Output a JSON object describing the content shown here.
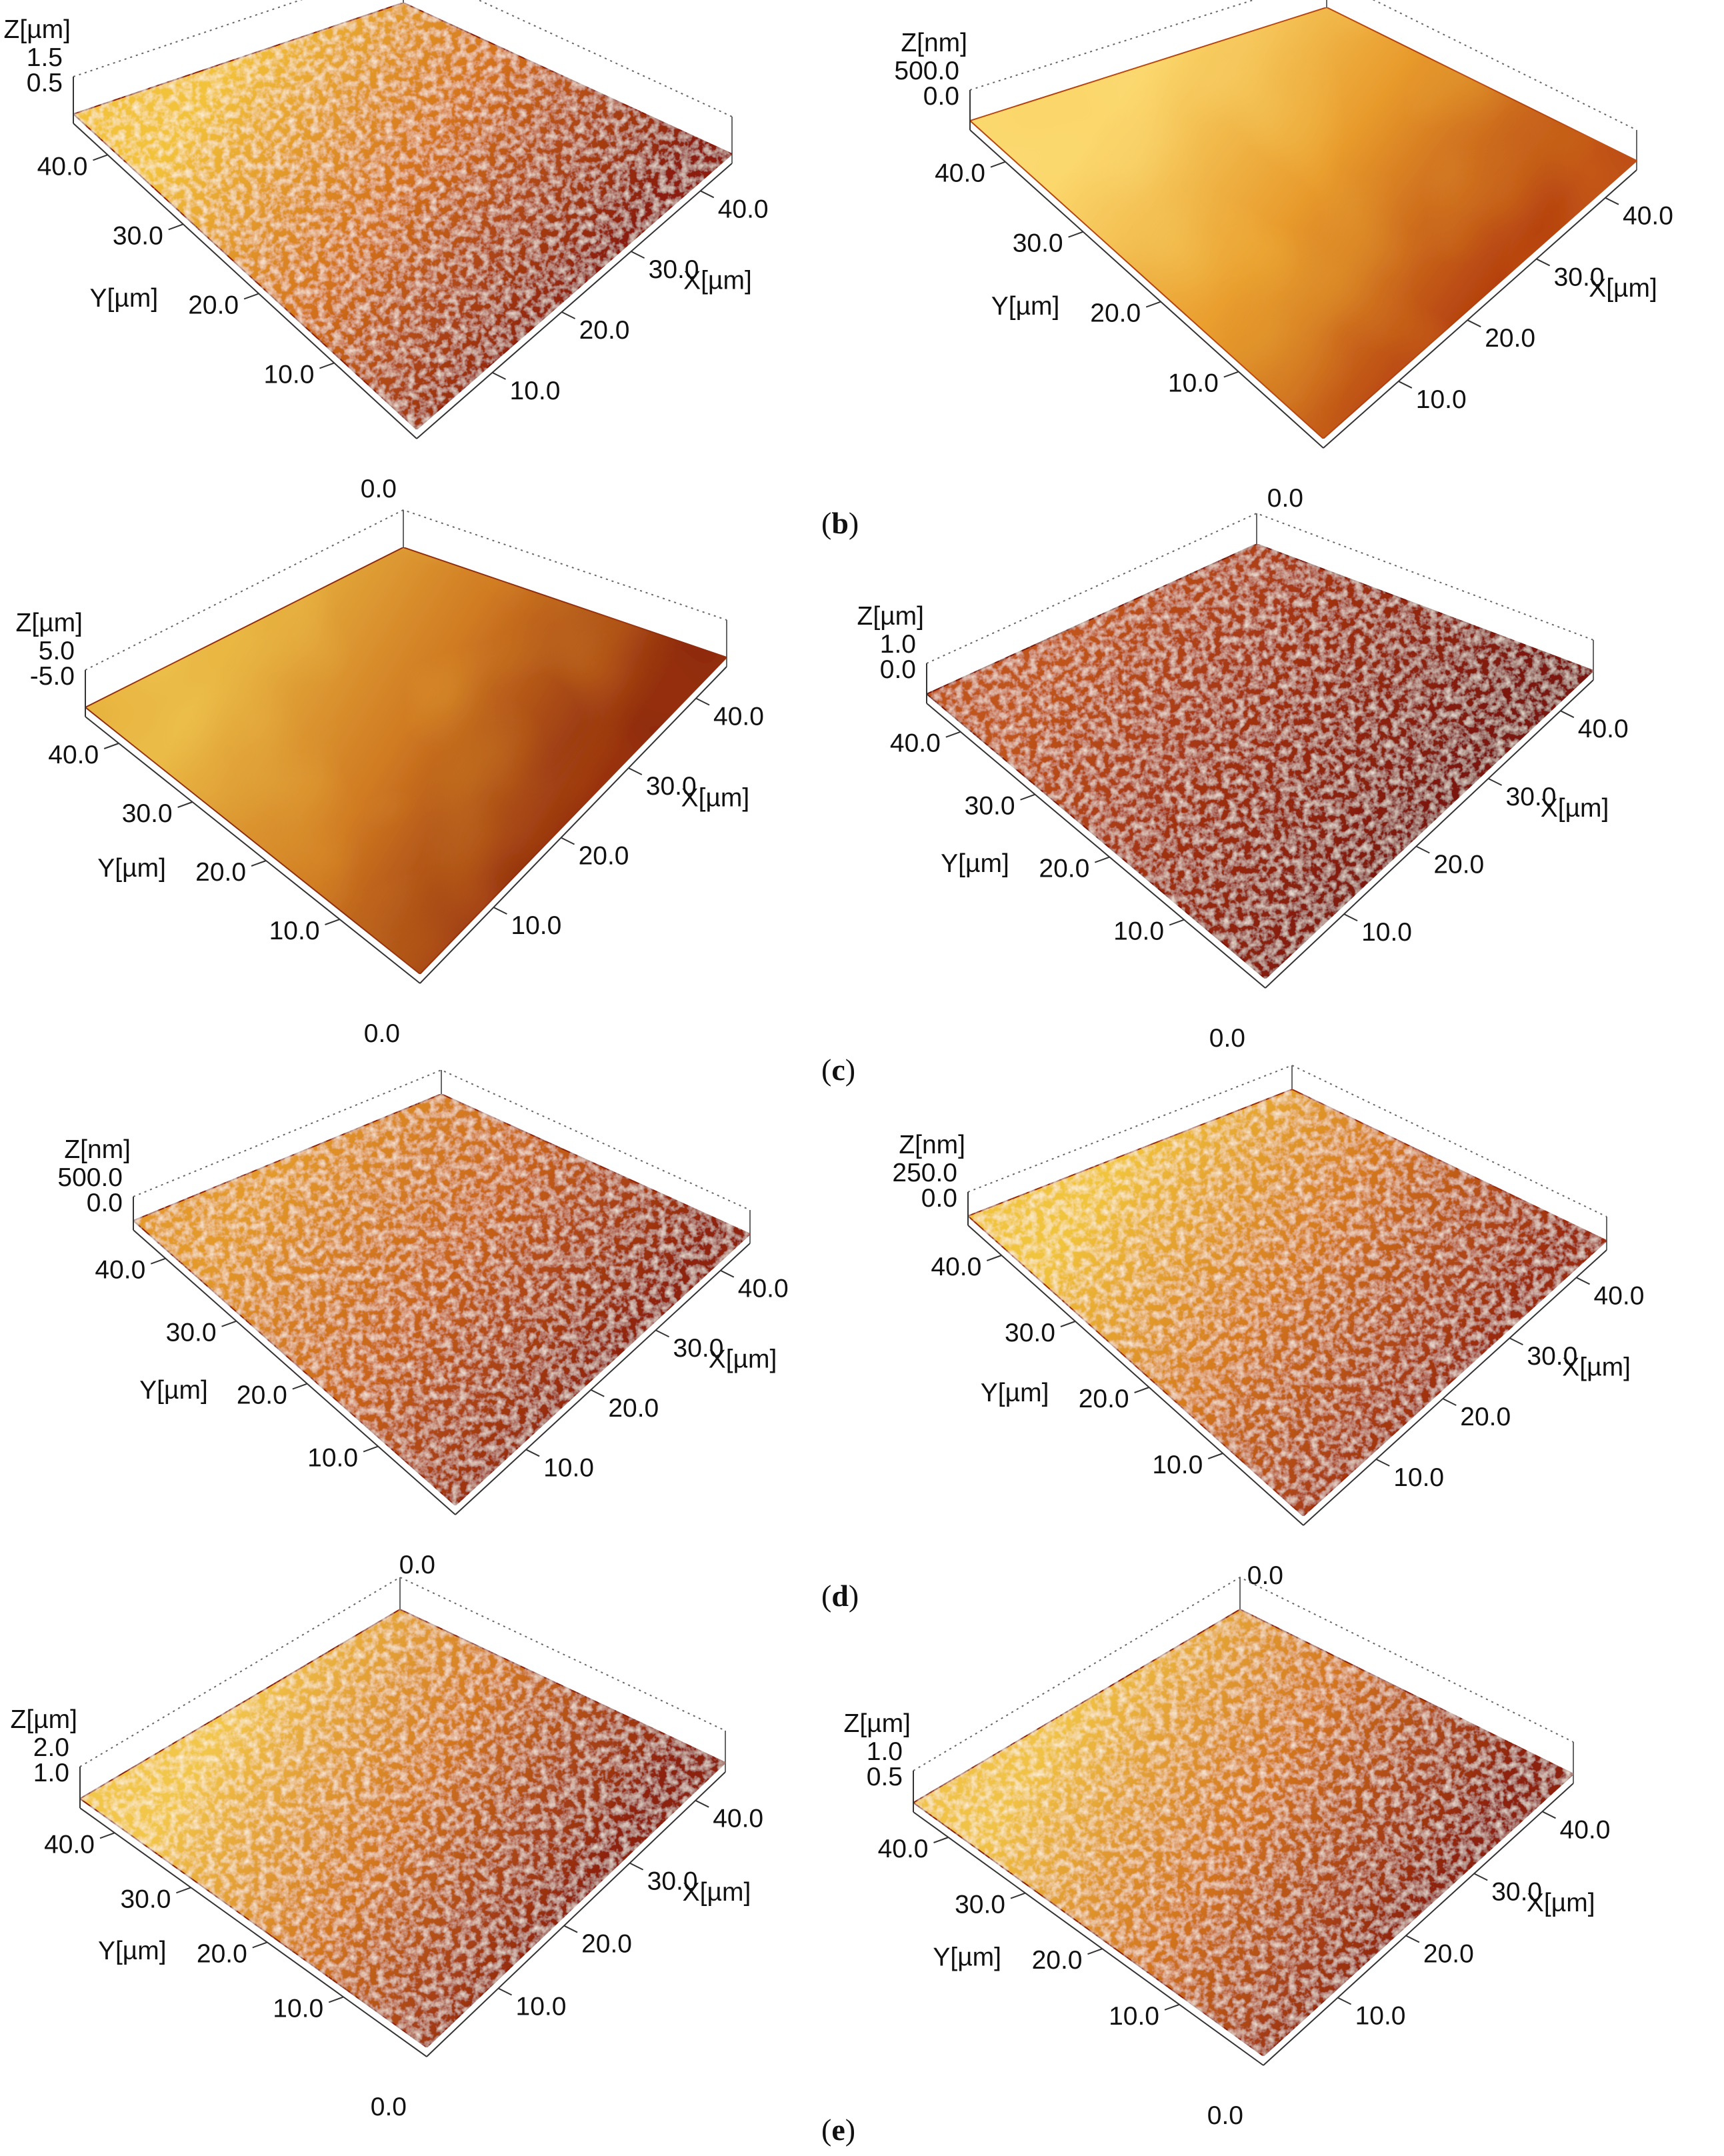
{
  "figure": {
    "captions": [
      {
        "id": "b",
        "open": "(",
        "letter": "b",
        "close": ")"
      },
      {
        "id": "c",
        "open": "(",
        "letter": "c",
        "close": ")"
      },
      {
        "id": "d",
        "open": "(",
        "letter": "d",
        "close": ")"
      },
      {
        "id": "e",
        "open": "(",
        "letter": "e",
        "close": ")"
      }
    ],
    "panels": [
      {
        "id": "r1-left",
        "z_label": "Z[µm]",
        "z_ticks": [
          "1.5",
          "0.5"
        ],
        "y_label": "Y[µm]",
        "y_ticks": [
          "40.0",
          "30.0",
          "20.0",
          "10.0"
        ],
        "x_label": "X[µm]",
        "x_ticks": [
          "40.0",
          "30.0",
          "20.0",
          "10.0"
        ],
        "origin": "0.0",
        "colors": [
          "#f2c23a",
          "#d4731b",
          "#8c1f0c"
        ]
      },
      {
        "id": "r1-right",
        "z_label": "Z[nm]",
        "z_ticks": [
          "500.0",
          "0.0"
        ],
        "y_label": "Y[µm]",
        "y_ticks": [
          "40.0",
          "30.0",
          "20.0",
          "10.0"
        ],
        "x_label": "X[µm]",
        "x_ticks": [
          "40.0",
          "30.0",
          "20.0",
          "10.0"
        ],
        "origin": "0.0",
        "colors": [
          "#fbd66a",
          "#e89b2c",
          "#b4400f"
        ]
      },
      {
        "id": "r2-left",
        "z_label": "Z[µm]",
        "z_ticks": [
          "5.0",
          "-5.0"
        ],
        "y_label": "Y[µm]",
        "y_ticks": [
          "40.0",
          "30.0",
          "20.0",
          "10.0"
        ],
        "x_label": "X[µm]",
        "x_ticks": [
          "40.0",
          "30.0",
          "20.0",
          "10.0"
        ],
        "origin": "0.0",
        "colors": [
          "#e8b440",
          "#d07a22",
          "#8e2a0c"
        ]
      },
      {
        "id": "r2-right",
        "z_label": "Z[µm]",
        "z_ticks": [
          "1.0",
          "0.0"
        ],
        "y_label": "Y[µm]",
        "y_ticks": [
          "40.0",
          "30.0",
          "20.0",
          "10.0"
        ],
        "x_label": "X[µm]",
        "x_ticks": [
          "40.0",
          "30.0",
          "20.0",
          "10.0"
        ],
        "origin": "0.0",
        "colors": [
          "#c0551a",
          "#9e2f10",
          "#7a1608"
        ]
      },
      {
        "id": "r3-left",
        "z_label": "Z[nm]",
        "z_ticks": [
          "500.0",
          "0.0"
        ],
        "y_label": "Y[µm]",
        "y_ticks": [
          "40.0",
          "30.0",
          "20.0",
          "10.0"
        ],
        "x_label": "X[µm]",
        "x_ticks": [
          "40.0",
          "30.0",
          "20.0",
          "10.0"
        ],
        "origin": "0.0",
        "colors": [
          "#e39a2a",
          "#c9651a",
          "#8f230b"
        ]
      },
      {
        "id": "r3-right",
        "z_label": "Z[nm]",
        "z_ticks": [
          "250.0",
          "0.0"
        ],
        "y_label": "Y[µm]",
        "y_ticks": [
          "40.0",
          "30.0",
          "20.0",
          "10.0"
        ],
        "x_label": "X[µm]",
        "x_ticks": [
          "40.0",
          "30.0",
          "20.0",
          "10.0"
        ],
        "origin": "0.0",
        "colors": [
          "#f1c43c",
          "#d57a1e",
          "#9a2a0e"
        ]
      },
      {
        "id": "r4-left",
        "z_label": "Z[µm]",
        "z_ticks": [
          "2.0",
          "1.0"
        ],
        "y_label": "Y[µm]",
        "y_ticks": [
          "40.0",
          "30.0",
          "20.0",
          "10.0"
        ],
        "x_label": "X[µm]",
        "x_ticks": [
          "40.0",
          "30.0",
          "20.0",
          "10.0"
        ],
        "origin": "0.0",
        "colors": [
          "#f2c64a",
          "#d3781f",
          "#8c200c"
        ]
      },
      {
        "id": "r4-right",
        "z_label": "Z[µm]",
        "z_ticks": [
          "1.0",
          "0.5"
        ],
        "y_label": "Y[µm]",
        "y_ticks": [
          "40.0",
          "30.0",
          "20.0",
          "10.0"
        ],
        "x_label": "X[µm]",
        "x_ticks": [
          "40.0",
          "30.0",
          "20.0",
          "10.0"
        ],
        "origin": "0.0",
        "colors": [
          "#f0c244",
          "#d3761e",
          "#8c200c"
        ]
      }
    ]
  }
}
